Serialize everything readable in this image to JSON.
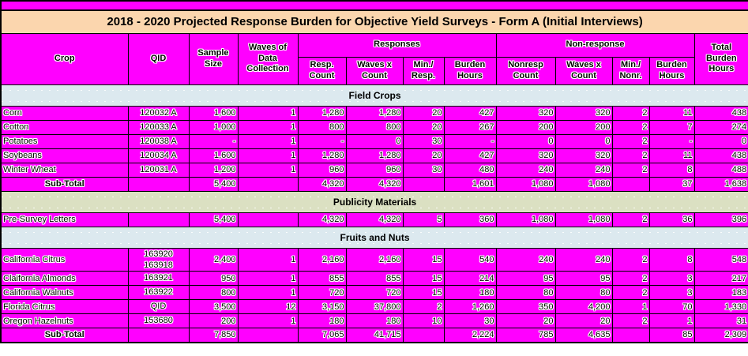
{
  "colors": {
    "cell_magenta": "#FF00FF",
    "title_bg": "#FBD6AE",
    "section_blue": "#DCE9EF",
    "section_olive": "#DBE0C2",
    "grid": "#000000"
  },
  "chart_data": {
    "type": "table",
    "title": "2018 - 2020 Projected Response Burden for Objective Yield Surveys - Form A (Initial Interviews)",
    "header": {
      "crop": "Crop",
      "qid": "QID",
      "sample_size": "Sample Size",
      "waves": "Waves of Data Collection",
      "responses_group": "Responses",
      "nonresponse_group": "Non-response",
      "total": "Total Burden Hours",
      "sub_columns": [
        "Resp. Count",
        "Waves x Count",
        "Min./ Resp.",
        "Burden Hours",
        "Nonresp Count",
        "Waves x Count",
        "Min./ Nonr.",
        "Burden Hours"
      ]
    },
    "rows": [
      {
        "type": "band",
        "style": "blue",
        "label": "Field Crops"
      },
      {
        "type": "data",
        "cells": [
          "Corn",
          "120032 A",
          "1,600",
          "1",
          "1,280",
          "1,280",
          "20",
          "427",
          "320",
          "320",
          "2",
          "11",
          "438"
        ]
      },
      {
        "type": "data",
        "cells": [
          "Cotton",
          "120033 A",
          "1,000",
          "1",
          "800",
          "800",
          "20",
          "267",
          "200",
          "200",
          "2",
          "7",
          "274"
        ]
      },
      {
        "type": "data",
        "cells": [
          "Potatoes",
          "120038 A",
          "-",
          "1",
          "-",
          "0",
          "30",
          "-",
          "0",
          "0",
          "2",
          "-",
          "0"
        ]
      },
      {
        "type": "data",
        "cells": [
          "Soybeans",
          "120034 A",
          "1,600",
          "1",
          "1,280",
          "1,280",
          "20",
          "427",
          "320",
          "320",
          "2",
          "11",
          "438"
        ]
      },
      {
        "type": "data",
        "cells": [
          "Winter Wheat",
          "120031 A",
          "1,200",
          "1",
          "960",
          "960",
          "30",
          "480",
          "240",
          "240",
          "2",
          "8",
          "488"
        ]
      },
      {
        "type": "subtotal",
        "cells": [
          "Sub-Total",
          "",
          "5,400",
          "",
          "4,320",
          "4,320",
          "",
          "1,601",
          "1,080",
          "1,080",
          "",
          "37",
          "1,638"
        ]
      },
      {
        "type": "band",
        "style": "olive",
        "label": "Publicity Materials"
      },
      {
        "type": "data",
        "cells": [
          "Pre-Survey Letters",
          "",
          "5,400",
          "",
          "4,320",
          "4,320",
          "5",
          "360",
          "1,080",
          "1,080",
          "2",
          "36",
          "396"
        ]
      },
      {
        "type": "band",
        "style": "blue",
        "label": "Fruits and Nuts"
      },
      {
        "type": "data",
        "cells": [
          "California Citrus",
          "163920\n163918",
          "2,400",
          "1",
          "2,160",
          "2,160",
          "15",
          "540",
          "240",
          "240",
          "2",
          "8",
          "548"
        ]
      },
      {
        "type": "data",
        "cells": [
          "Claifornia Almonds",
          "163921",
          "950",
          "1",
          "855",
          "855",
          "15",
          "214",
          "95",
          "95",
          "2",
          "3",
          "217"
        ]
      },
      {
        "type": "data",
        "cells": [
          "California Walnuts",
          "163922",
          "800",
          "1",
          "720",
          "720",
          "15",
          "180",
          "80",
          "80",
          "2",
          "3",
          "183"
        ]
      },
      {
        "type": "data",
        "cells": [
          "Florida Citrus",
          "QID",
          "3,500",
          "12",
          "3,150",
          "37,800",
          "2",
          "1,260",
          "350",
          "4,200",
          "1",
          "70",
          "1,330"
        ]
      },
      {
        "type": "data",
        "cells": [
          "Oregon Hazelnuts",
          "153680",
          "200",
          "1",
          "180",
          "180",
          "10",
          "30",
          "20",
          "20",
          "2",
          "1",
          "31"
        ]
      },
      {
        "type": "subtotal",
        "cells": [
          "Sub-Total",
          "",
          "7,850",
          "",
          "7,065",
          "41,715",
          "",
          "2,224",
          "785",
          "4,635",
          "",
          "85",
          "2,309"
        ]
      }
    ]
  }
}
